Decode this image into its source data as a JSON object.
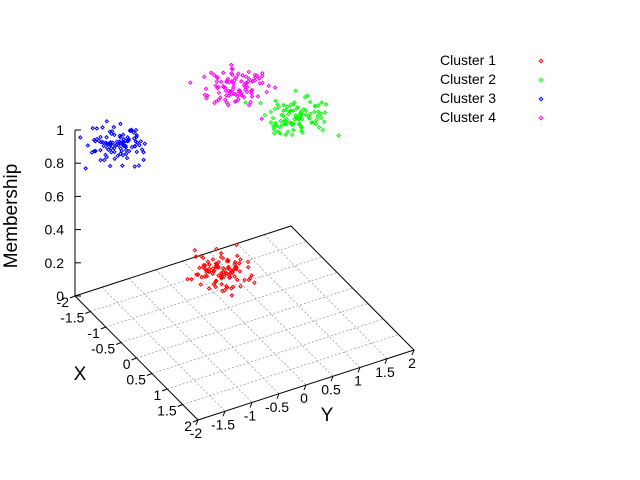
{
  "chart_data": {
    "type": "scatter",
    "projection": "3d",
    "title": "",
    "xlabel": "X",
    "ylabel": "Y",
    "zlabel": "Membership",
    "xlim": [
      -2,
      2
    ],
    "ylim": [
      -2,
      2
    ],
    "zlim": [
      0,
      1
    ],
    "x_ticks": [
      "-2",
      "-1.5",
      "-1",
      "-0.5",
      "0",
      "0.5",
      "1",
      "1.5",
      "2"
    ],
    "y_ticks": [
      "-2",
      "-1.5",
      "-1",
      "-0.5",
      "0",
      "0.5",
      "1",
      "1.5",
      "2"
    ],
    "z_ticks": [
      "0",
      "0.2",
      "0.4",
      "0.6",
      "0.8",
      "1"
    ],
    "grid": true,
    "legend_position": "top-right",
    "points_per_series": 100,
    "series": [
      {
        "name": "Cluster 1",
        "color": "#ff0000",
        "center": [
          1,
          -1
        ],
        "spread": 0.25,
        "membership": 0.6
      },
      {
        "name": "Cluster 2",
        "color": "#00ff00",
        "center": [
          -1,
          1.5
        ],
        "spread": 0.25,
        "membership": 0.9
      },
      {
        "name": "Cluster 3",
        "color": "#0000ff",
        "center": [
          -1.5,
          -1.5
        ],
        "spread": 0.25,
        "membership": 0.95
      },
      {
        "name": "Cluster 4",
        "color": "#ff00ff",
        "center": [
          -2,
          1
        ],
        "spread": 0.25,
        "membership": 0.95
      }
    ]
  }
}
